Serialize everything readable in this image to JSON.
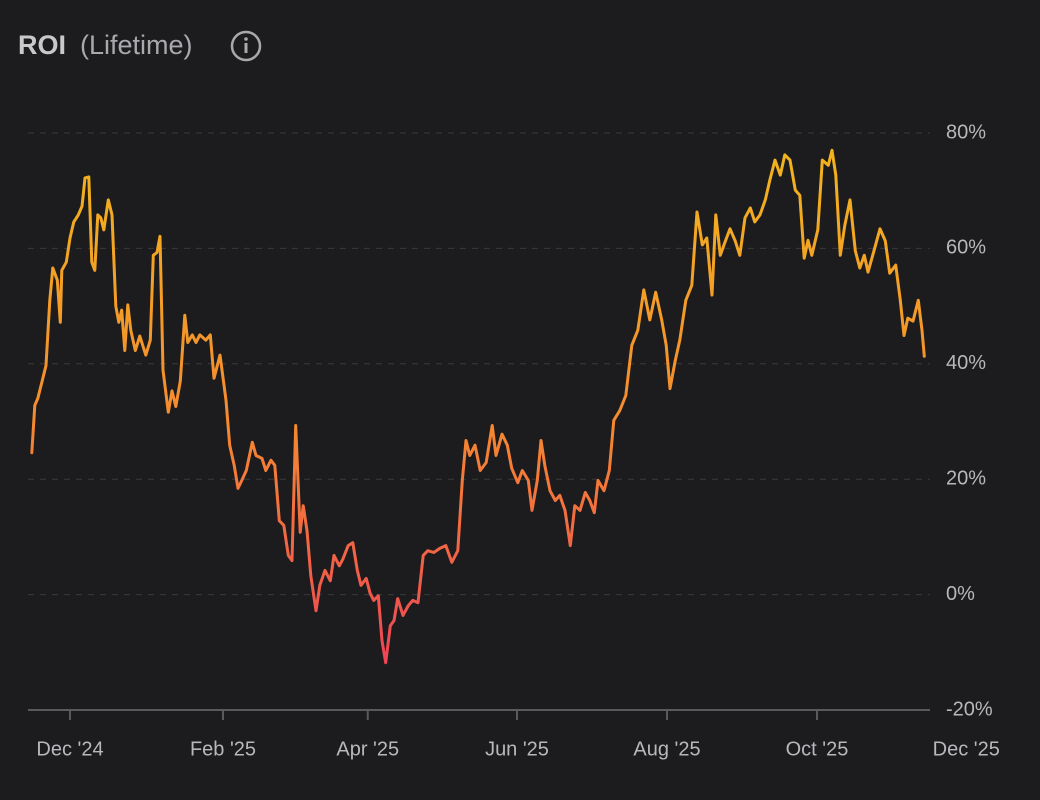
{
  "chart_data": {
    "type": "line",
    "title": "ROI",
    "subtitle": "(Lifetime)",
    "x": [
      -0.51,
      -0.47,
      -0.43,
      -0.37,
      -0.32,
      -0.27,
      -0.23,
      -0.17,
      -0.13,
      -0.11,
      -0.05,
      0,
      0.05,
      0.11,
      0.16,
      0.2,
      0.25,
      0.29,
      0.33,
      0.37,
      0.41,
      0.45,
      0.51,
      0.56,
      0.61,
      0.65,
      0.69,
      0.73,
      0.77,
      0.81,
      0.87,
      0.93,
      1.01,
      1.07,
      1.11,
      1.16,
      1.2,
      1.24,
      1.31,
      1.36,
      1.41,
      1.47,
      1.53,
      1.57,
      1.63,
      1.68,
      1.73,
      1.81,
      1.87,
      1.92,
      2,
      2.08,
      2.13,
      2.19,
      2.24,
      2.29,
      2.35,
      2.43,
      2.48,
      2.56,
      2.61,
      2.68,
      2.73,
      2.79,
      2.85,
      2.91,
      2.96,
      3.01,
      3.07,
      3.11,
      3.16,
      3.21,
      3.28,
      3.33,
      3.4,
      3.47,
      3.52,
      3.59,
      3.64,
      3.71,
      3.77,
      3.83,
      3.88,
      3.95,
      4,
      4.05,
      4.11,
      4.16,
      4.21,
      4.27,
      4.32,
      4.37,
      4.44,
      4.51,
      4.57,
      4.64,
      4.71,
      4.77,
      4.85,
      4.93,
      5.01,
      5.09,
      5.17,
      5.23,
      5.28,
      5.33,
      5.4,
      5.47,
      5.55,
      5.63,
      5.68,
      5.76,
      5.83,
      5.89,
      5.97,
      6.03,
      6.11,
      6.16,
      6.23,
      6.28,
      6.33,
      6.4,
      6.47,
      6.53,
      6.6,
      6.67,
      6.73,
      6.8,
      6.87,
      6.93,
      6.99,
      7.04,
      7.12,
      7.19,
      7.25,
      7.33,
      7.41,
      7.49,
      7.57,
      7.65,
      7.73,
      7.81,
      7.89,
      7.95,
      8,
      8.07,
      8.13,
      8.21,
      8.29,
      8.36,
      8.43,
      8.49,
      8.56,
      8.61,
      8.67,
      8.73,
      8.8,
      8.87,
      8.93,
      9,
      9.07,
      9.13,
      9.2,
      9.27,
      9.33,
      9.4,
      9.47,
      9.53,
      9.6,
      9.67,
      9.73,
      9.79,
      9.84,
      9.89,
      9.97,
      10.03,
      10.11,
      10.16,
      10.21,
      10.27,
      10.33,
      10.4,
      10.47,
      10.53,
      10.59,
      10.64,
      10.72,
      10.8,
      10.87,
      10.93,
      11.01,
      11.07,
      11.12,
      11.17,
      11.24,
      11.31,
      11.36,
      11.39
    ],
    "values": [
      24.6,
      32.8,
      34,
      37.1,
      39.7,
      51,
      56.6,
      54.5,
      47.2,
      56.2,
      57.6,
      61.8,
      64.6,
      65.8,
      67.3,
      72.2,
      72.4,
      57.6,
      56.2,
      65.8,
      65.3,
      63.2,
      68.4,
      65.8,
      50,
      47.2,
      49.3,
      42.3,
      50.2,
      45.8,
      42.3,
      44.8,
      41.5,
      44.1,
      58.8,
      59.3,
      62.1,
      38.9,
      31.6,
      35.3,
      32.6,
      37,
      48.4,
      43.7,
      45,
      43.7,
      45,
      44.1,
      45,
      37.5,
      41.5,
      33.7,
      25.9,
      22.4,
      18.4,
      19.8,
      21.5,
      26.4,
      24.1,
      23.6,
      21.5,
      23.3,
      22.4,
      12.8,
      12,
      6.8,
      5.9,
      29.3,
      10.8,
      15.4,
      11.1,
      3.3,
      -2.8,
      1.6,
      4.2,
      2.4,
      6.8,
      5,
      6.2,
      8.5,
      9,
      4.2,
      1.6,
      2.8,
      0.3,
      -1,
      -0.2,
      -8,
      -11.8,
      -5.4,
      -4.5,
      -0.7,
      -3.6,
      -1.9,
      -1,
      -1.4,
      6.8,
      7.6,
      7.3,
      8,
      8.5,
      5.6,
      7.6,
      19.8,
      26.7,
      24.1,
      25.9,
      21.5,
      22.9,
      29.3,
      24.1,
      27.8,
      25.9,
      21.9,
      19.4,
      21.5,
      19.8,
      14.6,
      19.8,
      26.7,
      22.4,
      18,
      16.3,
      17.2,
      14.6,
      8.5,
      15.4,
      14.6,
      17.7,
      16.3,
      14.2,
      19.8,
      18,
      21.5,
      30.2,
      31.9,
      34.5,
      43.2,
      45.8,
      52.8,
      47.6,
      52.4,
      47.6,
      43.2,
      35.7,
      40.6,
      44.1,
      51,
      53.6,
      66.3,
      60.6,
      61.8,
      51.9,
      65.8,
      58.8,
      61,
      63.4,
      61.3,
      58.8,
      65.3,
      67,
      64.6,
      65.8,
      68.4,
      71.8,
      75.3,
      72.7,
      76.2,
      75.3,
      70.1,
      69.2,
      58.3,
      61.4,
      58.8,
      63.2,
      75.3,
      74.4,
      77,
      72.7,
      58.8,
      64,
      68.4,
      59.6,
      56.6,
      58.8,
      55.9,
      59.6,
      63.4,
      61.3,
      55.7,
      57.1,
      51,
      44.9,
      47.9,
      47.4,
      51,
      45.8,
      41.3
    ],
    "gradient": [
      "#ee3a5c",
      "#f58a30",
      "#f2b61c"
    ],
    "xlim": [
      -0.56,
      12
    ],
    "xticks": [
      {
        "value": 0,
        "label": "Dec '24"
      },
      {
        "value": 2.04,
        "label": "Feb '25"
      },
      {
        "value": 3.97,
        "label": "Apr '25"
      },
      {
        "value": 5.96,
        "label": "Jun '25"
      },
      {
        "value": 7.96,
        "label": "Aug '25"
      },
      {
        "value": 9.96,
        "label": "Oct '25"
      },
      {
        "value": 11.95,
        "label": "Dec '25"
      }
    ],
    "ylim": [
      -20,
      80
    ],
    "yticks": [
      {
        "value": -20,
        "label": "-20%"
      },
      {
        "value": 0,
        "label": "0%"
      },
      {
        "value": 20,
        "label": "20%"
      },
      {
        "value": 40,
        "label": "40%"
      },
      {
        "value": 60,
        "label": "60%"
      },
      {
        "value": 80,
        "label": "80%"
      }
    ],
    "grid": true
  }
}
